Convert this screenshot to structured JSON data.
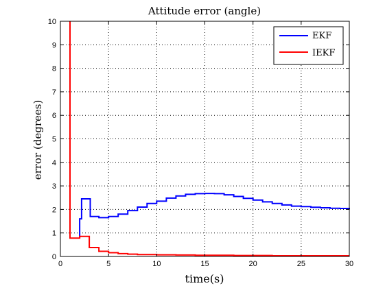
{
  "chart_data": {
    "type": "line",
    "title": "Attitude error (angle)",
    "xlabel": "time(s)",
    "ylabel": "error (degrees)",
    "xlim": [
      0,
      30
    ],
    "ylim": [
      0,
      10
    ],
    "xticks": [
      0,
      5,
      10,
      15,
      20,
      25,
      30
    ],
    "yticks": [
      0,
      1,
      2,
      3,
      4,
      5,
      6,
      7,
      8,
      9,
      10
    ],
    "grid": true,
    "grid_style": "dotted",
    "legend_position": "top-right",
    "series": [
      {
        "name": "EKF",
        "color": "#0000ff",
        "step": true,
        "x": [
          2.0,
          2.0,
          2.2,
          2.9,
          3.1,
          4.0,
          5.0,
          6.0,
          7.0,
          8.0,
          9.0,
          10.0,
          11.0,
          12.0,
          13.0,
          14.0,
          15.0,
          16.0,
          17.0,
          18.0,
          19.0,
          20.0,
          21.0,
          22.0,
          23.0,
          24.0,
          25.0,
          26.0,
          27.0,
          28.0,
          29.0,
          30.0
        ],
        "y": [
          0.8,
          1.6,
          2.45,
          2.45,
          1.7,
          1.65,
          1.7,
          1.8,
          1.95,
          2.1,
          2.25,
          2.35,
          2.48,
          2.57,
          2.64,
          2.67,
          2.68,
          2.67,
          2.62,
          2.55,
          2.47,
          2.4,
          2.32,
          2.25,
          2.19,
          2.14,
          2.12,
          2.09,
          2.07,
          2.05,
          2.04,
          2.0
        ]
      },
      {
        "name": "IEKF",
        "color": "#ff0000",
        "step": true,
        "x": [
          1.0,
          1.0,
          1.0,
          1.0,
          2.0,
          3.0,
          3.0,
          4.0,
          5.0,
          6.0,
          7.0,
          8.0,
          10.0,
          12.0,
          14.0,
          16.0,
          18.0,
          20.0,
          22.0,
          24.0,
          26.0,
          28.0,
          30.0
        ],
        "y": [
          10.0,
          5.35,
          0.78,
          0.78,
          0.85,
          0.85,
          0.38,
          0.22,
          0.16,
          0.12,
          0.1,
          0.08,
          0.07,
          0.06,
          0.05,
          0.05,
          0.04,
          0.04,
          0.03,
          0.03,
          0.03,
          0.03,
          0.03
        ]
      }
    ]
  }
}
